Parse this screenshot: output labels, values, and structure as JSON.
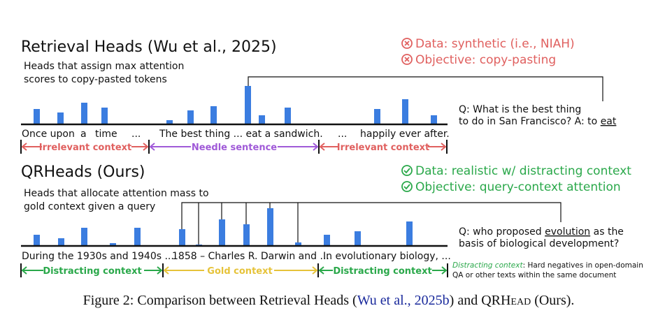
{
  "top": {
    "title": "Retrieval Heads (Wu et al., 2025)",
    "description": [
      "Heads that assign max attention",
      "scores to copy-pasted tokens"
    ],
    "cons": [
      "Data: synthetic (i.e., NIAH)",
      "Objective: copy-pasting"
    ],
    "tokens": [
      "Once upon",
      "a",
      "time",
      "...",
      "The best thing ... eat a sandwich.",
      "...",
      "happily ever after."
    ],
    "spans": [
      "Irrelevant context",
      "Needle sentence",
      "Irrelevant context"
    ],
    "question": [
      "Q: What is the best thing",
      "to do in San Francisco? A: to"
    ],
    "answer": "eat"
  },
  "bottom": {
    "title": "QRHeads (Ours)",
    "description": [
      "Heads that allocate attention mass to",
      "gold context given a query"
    ],
    "pros": [
      "Data: realistic w/ distracting context",
      "Objective: query-context attention"
    ],
    "tokens": [
      "During the 1930s and 1940s ...",
      "1858 – Charles R. Darwin and ...",
      "In evolutionary biology, ..."
    ],
    "spans": [
      "Distracting context",
      "Gold context",
      "Distracting context"
    ],
    "question": {
      "prefix": "Q: who proposed",
      "keyword": "evolution",
      "suffix": "as the",
      "line2": "basis of biological development?"
    },
    "note": {
      "term": "Distracting context",
      "text1": ": Hard negatives in open-domain",
      "text2": "QA or other texts within the same document"
    }
  },
  "caption": {
    "prefix": "Figure 2: Comparison between Retrieval Heads (",
    "citation": "Wu et al., 2025b",
    "middle": ") and QR",
    "name": "Head",
    "suffix": " (Ours)."
  }
}
